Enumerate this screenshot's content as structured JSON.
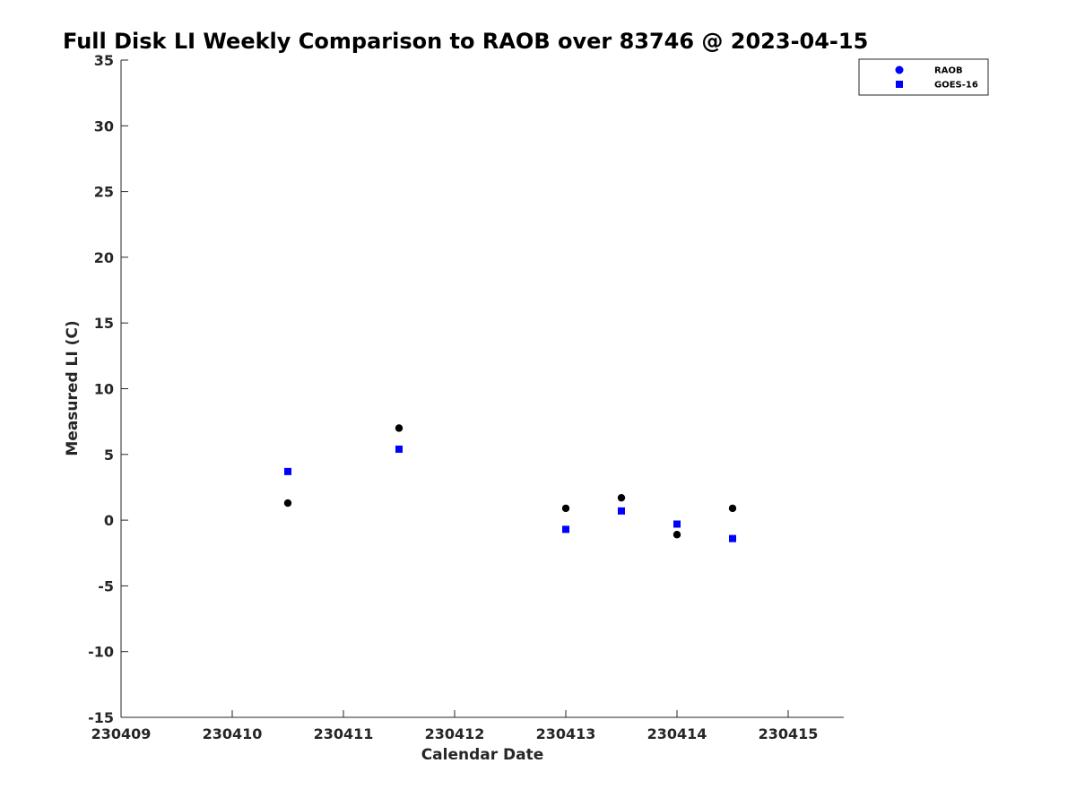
{
  "chart_data": {
    "type": "scatter",
    "title": "Full Disk LI Weekly Comparison to RAOB over 83746 @ 2023-04-15",
    "xlabel": "Calendar Date",
    "ylabel": "Measured LI (C)",
    "xlim": [
      230409,
      230415.5
    ],
    "ylim": [
      -15,
      35
    ],
    "xticks": [
      230409,
      230410,
      230411,
      230412,
      230413,
      230414,
      230415
    ],
    "xtick_labels": [
      "230409",
      "230410",
      "230411",
      "230412",
      "230413",
      "230414",
      "230415"
    ],
    "yticks": [
      -15,
      -10,
      -5,
      0,
      5,
      10,
      15,
      20,
      25,
      30,
      35
    ],
    "ytick_labels": [
      "-15",
      "-10",
      "-5",
      "0",
      "5",
      "10",
      "15",
      "20",
      "25",
      "30",
      "35"
    ],
    "grid": false,
    "legend_position": "top-right",
    "series": [
      {
        "name": "RAOB",
        "marker": "circle",
        "color": "#000000",
        "legend_color": "#0000ff",
        "x": [
          230410.5,
          230411.5,
          230413.0,
          230413.5,
          230414.0,
          230414.5
        ],
        "y": [
          1.3,
          7.0,
          0.9,
          1.7,
          -1.1,
          0.9
        ]
      },
      {
        "name": "GOES-16",
        "marker": "square",
        "color": "#0000ff",
        "legend_color": "#0000ff",
        "x": [
          230410.5,
          230411.5,
          230413.0,
          230413.5,
          230414.0,
          230414.5
        ],
        "y": [
          3.7,
          5.4,
          -0.7,
          0.7,
          -0.3,
          -1.4
        ]
      }
    ]
  }
}
